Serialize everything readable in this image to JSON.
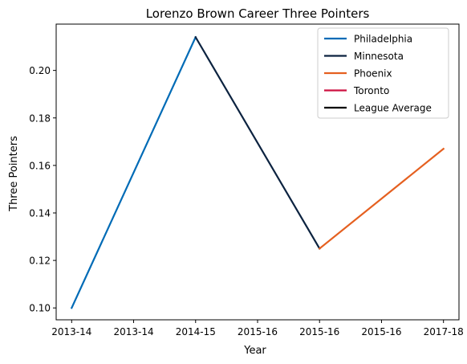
{
  "chart_data": {
    "type": "line",
    "title": "Lorenzo Brown Career Three Pointers",
    "xlabel": "Year",
    "ylabel": "Three Pointers",
    "x_tick_labels": [
      "2013-14",
      "2013-14",
      "2014-15",
      "2015-16",
      "2015-16",
      "2015-16",
      "2017-18"
    ],
    "ylim": [
      0.095,
      0.2195
    ],
    "y_ticks": [
      0.1,
      0.12,
      0.14,
      0.16,
      0.18,
      0.2
    ],
    "y_tick_labels": [
      "0.10",
      "0.12",
      "0.14",
      "0.16",
      "0.18",
      "0.20"
    ],
    "grid": false,
    "legend_position": "top-right",
    "series": [
      {
        "name": "Philadelphia",
        "color": "#006bb6",
        "points": [
          [
            0,
            0.1
          ],
          [
            2,
            0.214
          ]
        ]
      },
      {
        "name": "Minnesota",
        "color": "#0c2340",
        "points": [
          [
            2,
            0.214
          ],
          [
            4,
            0.125
          ]
        ]
      },
      {
        "name": "Phoenix",
        "color": "#e56020",
        "points": [
          [
            4,
            0.125
          ],
          [
            6,
            0.167
          ]
        ]
      },
      {
        "name": "Toronto",
        "color": "#ce1141",
        "points": []
      },
      {
        "name": "League Average",
        "color": "#000000",
        "points": []
      }
    ]
  }
}
